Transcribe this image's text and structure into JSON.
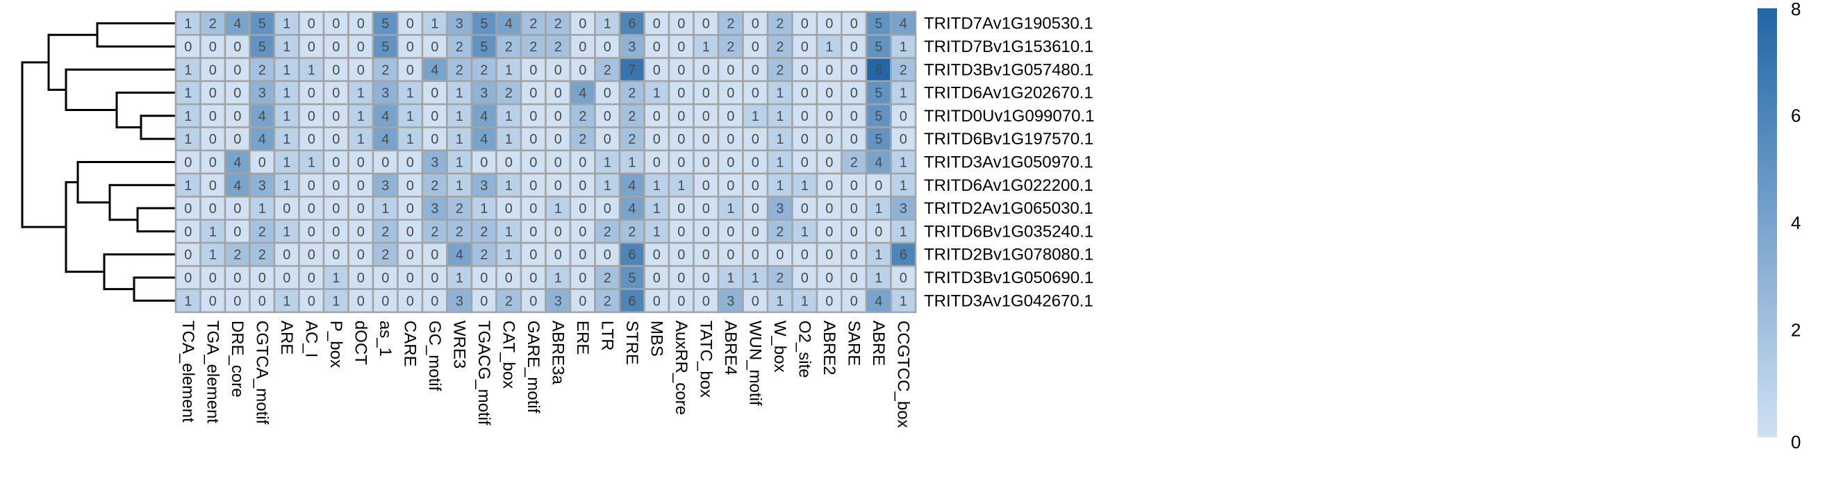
{
  "chart_data": {
    "type": "heatmap",
    "title": "",
    "xlabel": "",
    "ylabel": "",
    "columns": [
      "TCA_element",
      "TGA_element",
      "DRE_core",
      "CGTCA_motif",
      "ARE",
      "AC_I",
      "P_box",
      "dOCT",
      "as_1",
      "CARE",
      "GC_motif",
      "WRE3",
      "TGACG_motif",
      "CAT_box",
      "GARE_motif",
      "ABRE3a",
      "ERE",
      "LTR",
      "STRE",
      "MBS",
      "AuxRR_core",
      "TATC_box",
      "ABRE4",
      "WUN_motif",
      "W_box",
      "O2_site",
      "ABRE2",
      "SARE",
      "ABRE",
      "CCGTCC_box"
    ],
    "rows": [
      "TRITD7Av1G190530.1",
      "TRITD7Bv1G153610.1",
      "TRITD3Bv1G057480.1",
      "TRITD6Av1G202670.1",
      "TRITD0Uv1G099070.1",
      "TRITD6Bv1G197570.1",
      "TRITD3Av1G050970.1",
      "TRITD6Av1G022200.1",
      "TRITD2Av1G065030.1",
      "TRITD6Bv1G035240.1",
      "TRITD2Bv1G078080.1",
      "TRITD3Bv1G050690.1",
      "TRITD3Av1G042670.1"
    ],
    "values": [
      [
        1,
        2,
        4,
        5,
        1,
        0,
        0,
        0,
        5,
        0,
        1,
        3,
        5,
        4,
        2,
        2,
        0,
        1,
        6,
        0,
        0,
        0,
        2,
        0,
        2,
        0,
        0,
        0,
        5,
        4
      ],
      [
        0,
        0,
        0,
        5,
        1,
        0,
        0,
        0,
        5,
        0,
        0,
        2,
        5,
        2,
        2,
        2,
        0,
        0,
        3,
        0,
        0,
        1,
        2,
        0,
        2,
        0,
        1,
        0,
        5,
        1
      ],
      [
        1,
        0,
        0,
        2,
        1,
        1,
        0,
        0,
        2,
        0,
        4,
        2,
        2,
        1,
        0,
        0,
        0,
        2,
        7,
        0,
        0,
        0,
        0,
        0,
        2,
        0,
        0,
        0,
        8,
        2
      ],
      [
        1,
        0,
        0,
        3,
        1,
        0,
        0,
        1,
        3,
        1,
        0,
        1,
        3,
        2,
        0,
        0,
        4,
        0,
        2,
        1,
        0,
        0,
        0,
        0,
        1,
        0,
        0,
        0,
        5,
        1
      ],
      [
        1,
        0,
        0,
        4,
        1,
        0,
        0,
        1,
        4,
        1,
        0,
        1,
        4,
        1,
        0,
        0,
        2,
        0,
        2,
        0,
        0,
        0,
        0,
        1,
        1,
        0,
        0,
        0,
        5,
        0
      ],
      [
        1,
        0,
        0,
        4,
        1,
        0,
        0,
        1,
        4,
        1,
        0,
        1,
        4,
        1,
        0,
        0,
        2,
        0,
        2,
        0,
        0,
        0,
        0,
        0,
        1,
        0,
        0,
        0,
        5,
        0
      ],
      [
        0,
        0,
        4,
        0,
        1,
        1,
        0,
        0,
        0,
        0,
        3,
        1,
        0,
        0,
        0,
        0,
        0,
        1,
        1,
        0,
        0,
        0,
        0,
        0,
        1,
        0,
        0,
        2,
        4,
        1
      ],
      [
        1,
        0,
        4,
        3,
        1,
        0,
        0,
        0,
        3,
        0,
        2,
        1,
        3,
        1,
        0,
        0,
        0,
        1,
        4,
        1,
        1,
        0,
        0,
        0,
        1,
        1,
        0,
        0,
        0,
        1
      ],
      [
        0,
        0,
        0,
        1,
        0,
        0,
        0,
        0,
        1,
        0,
        3,
        2,
        1,
        0,
        0,
        1,
        0,
        0,
        4,
        1,
        0,
        0,
        1,
        0,
        3,
        0,
        0,
        0,
        1,
        3
      ],
      [
        0,
        1,
        0,
        2,
        1,
        0,
        0,
        0,
        2,
        0,
        2,
        2,
        2,
        1,
        0,
        0,
        0,
        2,
        2,
        1,
        0,
        0,
        0,
        0,
        2,
        1,
        0,
        0,
        0,
        1
      ],
      [
        0,
        1,
        2,
        2,
        0,
        0,
        0,
        0,
        2,
        0,
        0,
        4,
        2,
        1,
        0,
        0,
        0,
        0,
        6,
        0,
        0,
        0,
        0,
        0,
        0,
        0,
        0,
        0,
        1,
        6
      ],
      [
        0,
        0,
        0,
        0,
        0,
        0,
        1,
        0,
        0,
        0,
        0,
        1,
        0,
        0,
        0,
        1,
        0,
        2,
        5,
        0,
        0,
        0,
        1,
        1,
        2,
        0,
        0,
        0,
        1,
        0
      ],
      [
        1,
        0,
        0,
        0,
        1,
        0,
        1,
        0,
        0,
        0,
        0,
        3,
        0,
        2,
        0,
        3,
        0,
        2,
        6,
        0,
        0,
        0,
        3,
        0,
        1,
        1,
        0,
        0,
        4,
        1
      ]
    ],
    "color_scale": {
      "min": 0,
      "max": 8,
      "low_color": "#cfe1f2",
      "high_color": "#2166a6"
    },
    "legend": {
      "position": "right",
      "ticks": [
        "0",
        "2",
        "4",
        "6",
        "8"
      ]
    },
    "cell_border_color": "#a3a3a3",
    "dendrogram": "rows"
  }
}
